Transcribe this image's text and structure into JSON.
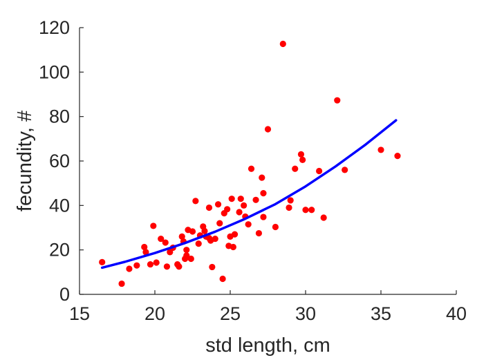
{
  "chart_data": {
    "type": "scatter",
    "title": "",
    "xlabel": "std length, cm",
    "ylabel": "fecundity, #",
    "xlim": [
      15,
      40
    ],
    "ylim": [
      0,
      120
    ],
    "x_ticks": [
      "15",
      "20",
      "25",
      "30",
      "35",
      "40"
    ],
    "y_ticks": [
      "0",
      "20",
      "40",
      "60",
      "80",
      "100",
      "120"
    ],
    "grid": false,
    "legend": "none",
    "colors": {
      "points": "#ff0000",
      "fit": "#0000ff",
      "axis": "#262626"
    },
    "series": [
      {
        "kind": "points",
        "points": [
          [
            16.5,
            14.5
          ],
          [
            17.8,
            4.8
          ],
          [
            18.3,
            11.5
          ],
          [
            18.8,
            13.0
          ],
          [
            19.3,
            21.3
          ],
          [
            19.4,
            19.0
          ],
          [
            19.7,
            13.5
          ],
          [
            19.9,
            30.8
          ],
          [
            20.1,
            14.3
          ],
          [
            20.4,
            25.0
          ],
          [
            20.7,
            23.3
          ],
          [
            20.8,
            12.5
          ],
          [
            21.0,
            19.0
          ],
          [
            21.2,
            21.0
          ],
          [
            21.5,
            13.5
          ],
          [
            21.6,
            12.5
          ],
          [
            21.8,
            26.0
          ],
          [
            21.9,
            23.8
          ],
          [
            22.0,
            16.0
          ],
          [
            22.1,
            17.5
          ],
          [
            22.1,
            20.0
          ],
          [
            22.2,
            29.0
          ],
          [
            22.4,
            16.0
          ],
          [
            22.5,
            28.3
          ],
          [
            22.7,
            42.0
          ],
          [
            22.9,
            22.8
          ],
          [
            23.0,
            26.5
          ],
          [
            23.2,
            30.5
          ],
          [
            23.3,
            28.5
          ],
          [
            23.4,
            26.0
          ],
          [
            23.6,
            39.0
          ],
          [
            23.6,
            25.3
          ],
          [
            23.7,
            24.2
          ],
          [
            23.8,
            12.3
          ],
          [
            24.0,
            25.0
          ],
          [
            24.2,
            40.5
          ],
          [
            24.3,
            32.0
          ],
          [
            24.5,
            7.0
          ],
          [
            24.6,
            36.5
          ],
          [
            24.8,
            38.3
          ],
          [
            24.9,
            21.8
          ],
          [
            25.0,
            26.0
          ],
          [
            25.1,
            43.0
          ],
          [
            25.2,
            21.3
          ],
          [
            25.3,
            27.0
          ],
          [
            25.6,
            37.0
          ],
          [
            25.7,
            43.0
          ],
          [
            25.9,
            40.0
          ],
          [
            26.0,
            35.0
          ],
          [
            26.2,
            31.5
          ],
          [
            26.4,
            56.5
          ],
          [
            26.7,
            42.5
          ],
          [
            26.9,
            27.5
          ],
          [
            27.1,
            52.5
          ],
          [
            27.2,
            34.8
          ],
          [
            27.2,
            45.5
          ],
          [
            27.5,
            74.3
          ],
          [
            28.0,
            30.3
          ],
          [
            28.5,
            112.7
          ],
          [
            28.9,
            39.0
          ],
          [
            29.0,
            42.3
          ],
          [
            29.3,
            56.5
          ],
          [
            29.7,
            63.0
          ],
          [
            29.8,
            60.5
          ],
          [
            30.0,
            38.0
          ],
          [
            30.4,
            38.0
          ],
          [
            30.9,
            55.5
          ],
          [
            31.2,
            34.5
          ],
          [
            32.1,
            87.3
          ],
          [
            32.6,
            56.0
          ],
          [
            35.0,
            65.0
          ],
          [
            36.1,
            62.3
          ]
        ]
      },
      {
        "kind": "fit",
        "points": [
          [
            16.5,
            12.0
          ],
          [
            18.0,
            14.6
          ],
          [
            20.0,
            18.6
          ],
          [
            22.0,
            23.1
          ],
          [
            24.0,
            28.2
          ],
          [
            26.0,
            34.0
          ],
          [
            28.0,
            40.6
          ],
          [
            30.0,
            48.6
          ],
          [
            32.0,
            57.6
          ],
          [
            34.0,
            67.5
          ],
          [
            36.0,
            78.3
          ]
        ]
      }
    ]
  }
}
